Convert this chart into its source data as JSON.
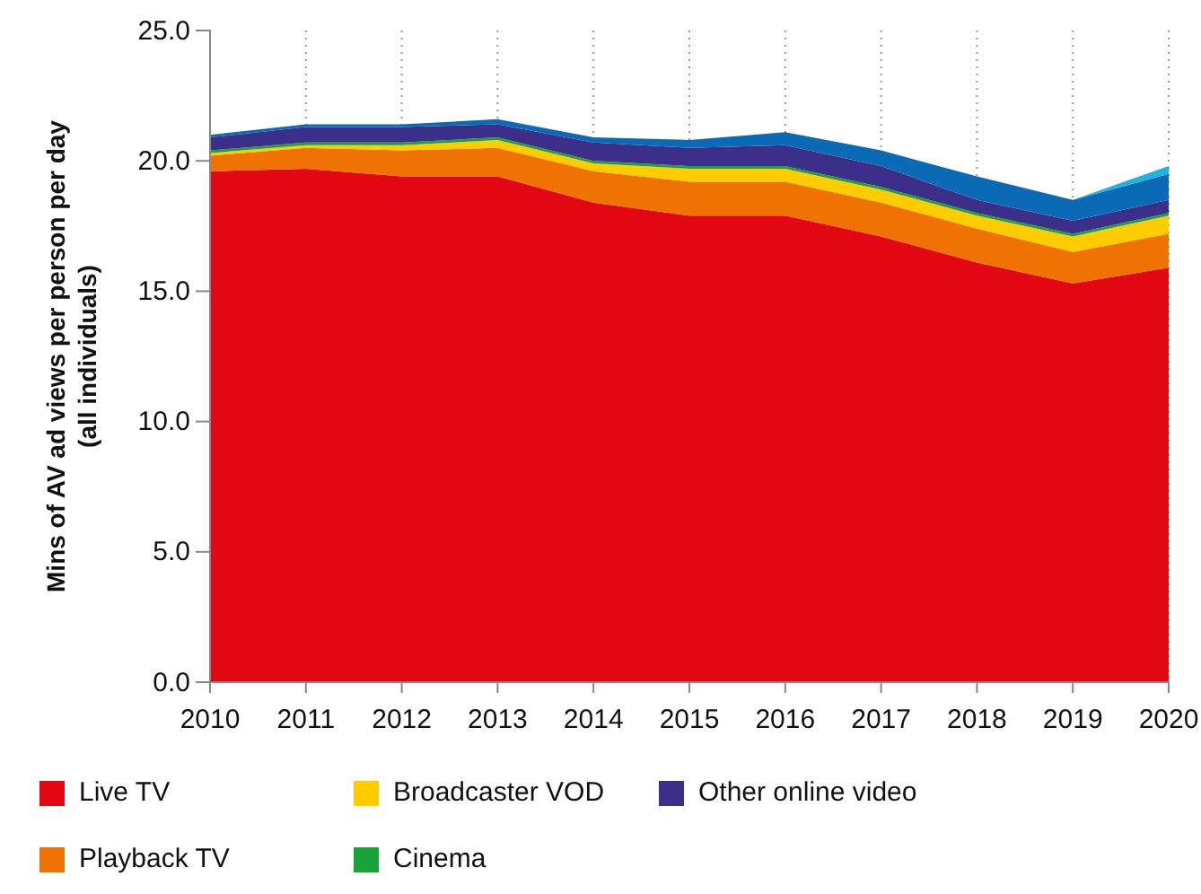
{
  "chart_data": {
    "type": "area",
    "stacked": true,
    "ylabel": "Mins of AV ad views per person per day\n(all individuals)",
    "x": [
      2010,
      2011,
      2012,
      2013,
      2014,
      2015,
      2016,
      2017,
      2018,
      2019,
      2020
    ],
    "xlim": [
      2010,
      2020
    ],
    "xticks": [
      2010,
      2011,
      2012,
      2013,
      2014,
      2015,
      2016,
      2017,
      2018,
      2019,
      2020
    ],
    "ylim": [
      0,
      25
    ],
    "yticks": [
      {
        "value": 0,
        "label": "0.0"
      },
      {
        "value": 5,
        "label": "5.0"
      },
      {
        "value": 10,
        "label": "10.0"
      },
      {
        "value": 15,
        "label": "15.0"
      },
      {
        "value": 20,
        "label": "20.0"
      },
      {
        "value": 25,
        "label": "25.0"
      }
    ],
    "grid": "x",
    "legend": "bottom",
    "series": [
      {
        "name": "Live TV",
        "color": "#e30613",
        "values": [
          19.6,
          19.7,
          19.4,
          19.4,
          18.4,
          17.9,
          17.9,
          17.1,
          16.1,
          15.3,
          15.9
        ]
      },
      {
        "name": "Playback TV",
        "color": "#ef7203",
        "values": [
          0.6,
          0.8,
          1.0,
          1.1,
          1.2,
          1.3,
          1.3,
          1.3,
          1.3,
          1.2,
          1.3
        ]
      },
      {
        "name": "Broadcaster VOD",
        "color": "#ffcc00",
        "values": [
          0.1,
          0.1,
          0.2,
          0.3,
          0.3,
          0.5,
          0.5,
          0.5,
          0.5,
          0.6,
          0.7
        ]
      },
      {
        "name": "Cinema",
        "color": "#1aa33a",
        "values": [
          0.1,
          0.1,
          0.1,
          0.1,
          0.1,
          0.1,
          0.1,
          0.1,
          0.1,
          0.1,
          0.1
        ]
      },
      {
        "name": "Other online video",
        "color": "#3c2f8a",
        "values": [
          0.5,
          0.6,
          0.6,
          0.5,
          0.7,
          0.7,
          0.8,
          0.8,
          0.5,
          0.5,
          0.5
        ]
      },
      {
        "color": "#0a6ab5",
        "values": [
          0.1,
          0.1,
          0.1,
          0.2,
          0.2,
          0.3,
          0.5,
          0.6,
          0.9,
          0.8,
          1.0
        ]
      },
      {
        "color": "#1fb2e0",
        "values": [
          0,
          0,
          0,
          0,
          0,
          0,
          0,
          0,
          0,
          0,
          0.3
        ]
      }
    ]
  }
}
